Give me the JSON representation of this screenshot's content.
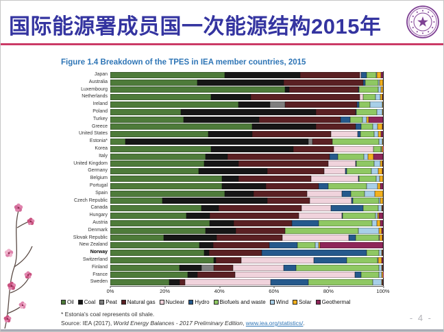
{
  "header": {
    "title": "国际能源署成员国一次能源结构2015年"
  },
  "figure": {
    "title": "Figure 1.4  Breakdown of the TPES in IEA member countries, 2015"
  },
  "chart_data": {
    "type": "bar",
    "stacked": true,
    "orientation": "horizontal",
    "title": "Figure 1.4 Breakdown of the TPES in IEA member countries, 2015",
    "unit": "% of TPES",
    "x_range": [
      0,
      100
    ],
    "x_ticks": [
      "0%",
      "20%",
      "40%",
      "60%",
      "80%",
      "100%"
    ],
    "legend_position": "bottom",
    "grid": false,
    "bold_category": "Norway",
    "categories": [
      "Japan",
      "Australia",
      "Luxembourg",
      "Netherlands",
      "Ireland",
      "Poland",
      "Turkey",
      "Greece",
      "United States",
      "Estonia*",
      "Korea",
      "Italy",
      "United Kingdom",
      "Germany",
      "Belgium",
      "Portugal",
      "Spain",
      "Czech Republic",
      "Canada",
      "Hungary",
      "Austria",
      "Denmark",
      "Slovak Republic",
      "New Zealand",
      "Norway",
      "Switzerland",
      "Finland",
      "France",
      "Sweden"
    ],
    "series": [
      {
        "name": "Oil",
        "color": "#4e7b3a",
        "values": [
          42,
          32,
          64,
          37,
          47,
          26,
          27,
          52,
          36,
          5.5,
          37,
          35,
          34.5,
          32.5,
          41,
          41,
          42,
          19,
          33.5,
          28,
          36.5,
          35,
          19.5,
          32.7,
          34.5,
          38,
          25.5,
          28.5,
          21.5
        ]
      },
      {
        "name": "Coal",
        "color": "#161616",
        "values": [
          27.5,
          31.5,
          1.5,
          14.5,
          11.5,
          49.5,
          27.5,
          23.5,
          16,
          67,
          30,
          8,
          12.5,
          25,
          6,
          16,
          10.5,
          38.5,
          6.2,
          8.5,
          8.7,
          11,
          19.5,
          5,
          1.7,
          0.6,
          8,
          3.5,
          4
        ]
      },
      {
        "name": "Peat",
        "color": "#7f7f7f",
        "values": [
          0,
          0,
          0,
          0,
          5.5,
          0,
          0,
          0,
          0,
          1.5,
          0,
          0,
          0,
          0,
          0,
          0,
          0,
          0,
          0,
          0,
          0,
          0,
          0,
          0,
          0,
          0,
          4.5,
          0,
          0
        ]
      },
      {
        "name": "Natural gas",
        "color": "#5a2023",
        "values": [
          22,
          29.3,
          25.5,
          40,
          26.5,
          14.5,
          30,
          14.5,
          29,
          7.5,
          15,
          37.5,
          33,
          21,
          26.5,
          19.5,
          19.5,
          15.5,
          30.5,
          32.5,
          21.5,
          18,
          24,
          20.5,
          19.3,
          9.5,
          7,
          13.7,
          1.8
        ]
      },
      {
        "name": "Nuclear",
        "color": "#f0d3dc",
        "values": [
          0.5,
          0,
          0,
          1.3,
          0,
          0,
          0,
          0,
          9.7,
          0,
          14.5,
          0,
          10,
          7.7,
          17.5,
          0,
          13,
          15.5,
          10.8,
          16,
          0,
          0,
          24.5,
          0,
          0,
          26.5,
          18.5,
          44,
          31.5
        ]
      },
      {
        "name": "Hydro",
        "color": "#25598c",
        "values": [
          2,
          0.7,
          0.3,
          0,
          0.7,
          0.2,
          3.5,
          2,
          1.1,
          0,
          0.1,
          3,
          0.3,
          0.5,
          0.2,
          3.4,
          3.3,
          0.4,
          11.7,
          0.2,
          9.8,
          0,
          2.5,
          10.5,
          38.5,
          12,
          4.6,
          2.3,
          13.7
        ]
      },
      {
        "name": "Biofuels and waste",
        "color": "#8fc863",
        "values": [
          3.5,
          4.7,
          7,
          4.5,
          4,
          7.5,
          4.5,
          4.2,
          4.9,
          17,
          2.6,
          9.5,
          6.5,
          9,
          6.3,
          14,
          5,
          9.6,
          5.5,
          12,
          19.5,
          27,
          8.5,
          6.5,
          4.5,
          11.5,
          30.5,
          6.5,
          23.8
        ]
      },
      {
        "name": "Wind",
        "color": "#a8cfe8",
        "values": [
          0.2,
          0.6,
          1,
          1.7,
          4.5,
          2,
          1.5,
          1.8,
          1.5,
          1.2,
          0.2,
          1.5,
          2.2,
          2.5,
          1.3,
          4.1,
          3.7,
          0.5,
          1.2,
          0.7,
          1.7,
          7.5,
          0.2,
          1.3,
          1,
          0.2,
          0.9,
          1,
          3.2
        ]
      },
      {
        "name": "Solar",
        "color": "#f2b01e",
        "values": [
          1.5,
          1.2,
          0.7,
          0.7,
          0.3,
          0.3,
          0.7,
          1.8,
          1,
          0.3,
          0.5,
          2,
          0.7,
          1.5,
          1.2,
          1,
          3,
          1,
          0.3,
          0.6,
          1.3,
          1,
          1,
          0.3,
          0.2,
          1.2,
          0.2,
          0.4,
          0.3
        ]
      },
      {
        "name": "Geothermal",
        "color": "#8e2659",
        "values": [
          0.8,
          0,
          0,
          0.3,
          0,
          0,
          5.3,
          0.2,
          0.8,
          0,
          0.1,
          3.5,
          0.3,
          0.3,
          0,
          1,
          0,
          0,
          0.3,
          1.5,
          1,
          0.5,
          0.3,
          23.2,
          0.3,
          0.5,
          0.3,
          0.1,
          0.2
        ]
      }
    ]
  },
  "footnotes": {
    "asterisk": "* Estonia's coal represents oil shale.",
    "source_prefix": "Source: IEA (2017), ",
    "source_title": "World Energy Balances - 2017 Preliminary Edition",
    "source_mid": ", ",
    "source_link": "www.iea.org/statistics/",
    "source_suffix": "."
  },
  "page_number": "- 4 -",
  "colors": {
    "title_text": "#3434a0",
    "title_rule": "#cb3a66",
    "figure_title": "#2e75b6",
    "link": "#2e75b6",
    "logo_purple": "#7d3f93",
    "page_number": "#b3b3b8"
  }
}
